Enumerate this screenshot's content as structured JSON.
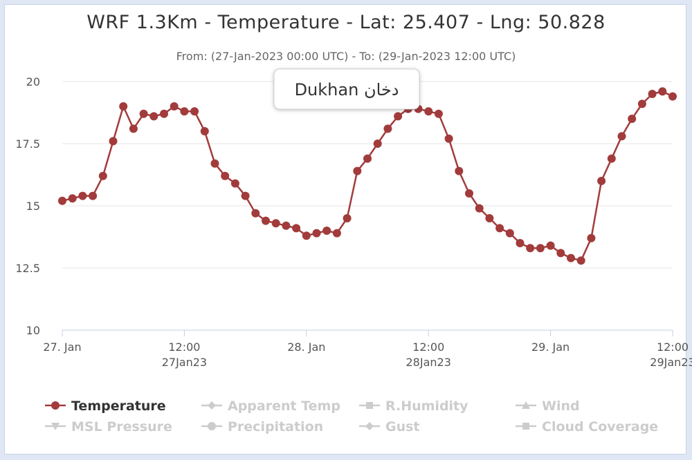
{
  "title": "WRF 1.3Km - Temperature - Lat: 25.407 - Lng: 50.828",
  "subtitle": "From: (27-Jan-2023 00:00 UTC) - To: (29-Jan-2023 12:00 UTC)",
  "location_badge": "Dukhan دخان",
  "colors": {
    "series": "#a23b3b",
    "grid": "#e6e6e6",
    "axis": "#c0d0e0",
    "legend_hidden": "#cccccc"
  },
  "chart_data": {
    "type": "line",
    "x_unit": "hours from 27-Jan-2023 00:00 UTC",
    "xlim": [
      0,
      60
    ],
    "ylim": [
      10,
      20
    ],
    "ytick_values": [
      10,
      12.5,
      15,
      17.5,
      20
    ],
    "ytick_labels": [
      "10",
      "12.5",
      "15",
      "17.5",
      "20"
    ],
    "xticks": [
      {
        "x": 0,
        "lines": [
          "27. Jan"
        ]
      },
      {
        "x": 12,
        "lines": [
          "12:00",
          "27Jan23"
        ]
      },
      {
        "x": 24,
        "lines": [
          "28. Jan"
        ]
      },
      {
        "x": 36,
        "lines": [
          "12:00",
          "28Jan23"
        ]
      },
      {
        "x": 48,
        "lines": [
          "29. Jan"
        ]
      },
      {
        "x": 60,
        "lines": [
          "12:00",
          "29Jan23"
        ]
      }
    ],
    "grid": true,
    "series": [
      {
        "name": "Temperature",
        "color": "#a23b3b",
        "x": [
          0,
          1,
          2,
          3,
          4,
          5,
          6,
          7,
          8,
          9,
          10,
          11,
          12,
          13,
          14,
          15,
          16,
          17,
          18,
          19,
          20,
          21,
          22,
          23,
          24,
          25,
          26,
          27,
          28,
          29,
          30,
          31,
          32,
          33,
          34,
          35,
          36,
          37,
          38,
          39,
          40,
          41,
          42,
          43,
          44,
          45,
          46,
          47,
          48,
          49,
          50,
          51,
          52,
          53,
          54,
          55,
          56,
          57,
          58,
          59,
          60
        ],
        "y": [
          15.2,
          15.3,
          15.4,
          15.4,
          16.2,
          17.6,
          19.0,
          18.1,
          18.7,
          18.6,
          18.7,
          19.0,
          18.8,
          18.8,
          18.0,
          16.7,
          16.2,
          15.9,
          15.4,
          14.7,
          14.4,
          14.3,
          14.2,
          14.1,
          13.8,
          13.9,
          14.0,
          13.9,
          14.5,
          16.4,
          16.9,
          17.5,
          18.1,
          18.6,
          18.9,
          18.9,
          18.8,
          18.7,
          17.7,
          16.4,
          15.5,
          14.9,
          14.5,
          14.1,
          13.9,
          13.5,
          13.3,
          13.3,
          13.4,
          13.1,
          12.9,
          12.8,
          13.7,
          16.0,
          16.9,
          17.8,
          18.5,
          19.1,
          19.5,
          19.6,
          19.4
        ]
      }
    ]
  },
  "legend": [
    {
      "label": "Temperature",
      "active": true,
      "marker": "circle"
    },
    {
      "label": "Apparent Temp",
      "active": false,
      "marker": "diamond"
    },
    {
      "label": "R.Humidity",
      "active": false,
      "marker": "square"
    },
    {
      "label": "Wind",
      "active": false,
      "marker": "triangle"
    },
    {
      "label": "MSL Pressure",
      "active": false,
      "marker": "triangle-down"
    },
    {
      "label": "Precipitation",
      "active": false,
      "marker": "circle"
    },
    {
      "label": "Gust",
      "active": false,
      "marker": "diamond"
    },
    {
      "label": "Cloud Coverage",
      "active": false,
      "marker": "square"
    }
  ]
}
